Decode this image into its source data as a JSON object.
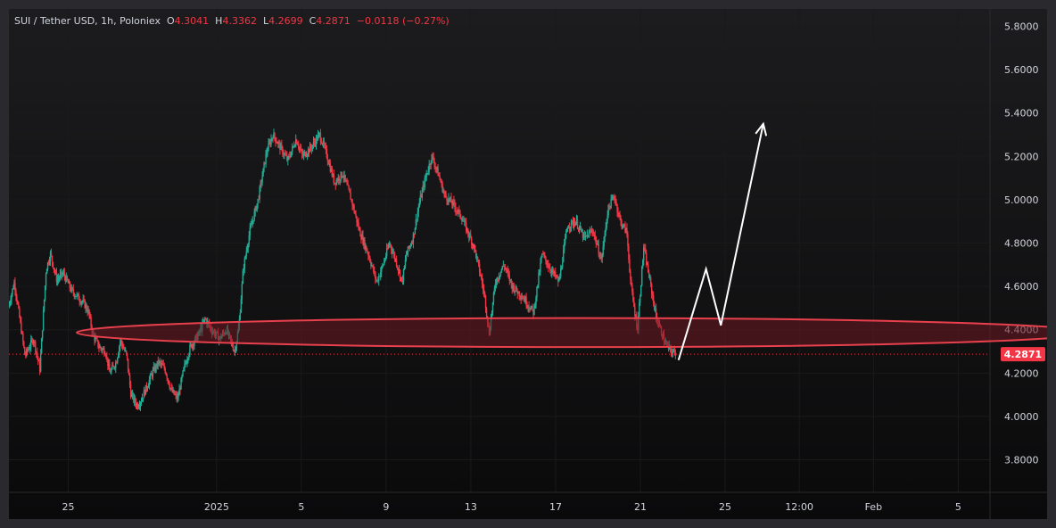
{
  "symbol": {
    "title": "SUI / Tether USD, 1h, Poloniex",
    "open_label": "O",
    "open": "4.3041",
    "high_label": "H",
    "high": "4.3362",
    "low_label": "L",
    "low": "4.2699",
    "close_label": "C",
    "close": "4.2871",
    "change": "−0.0118 (−0.27%)"
  },
  "colors": {
    "background": "#0c0c0d",
    "up_candle": "#22ab94",
    "down_candle": "#f23645",
    "zone_fill": "#6e1a22",
    "zone_stroke": "#e8404c",
    "projection": "#ffffff",
    "price_line": "#f23645",
    "text": "#d1d4dc"
  },
  "chart_data": {
    "type": "candlestick",
    "y_ticks": [
      "3.8000",
      "4.0000",
      "4.2000",
      "4.4000",
      "4.6000",
      "4.8000",
      "5.0000",
      "5.2000",
      "5.4000",
      "5.6000",
      "5.8000"
    ],
    "x_ticks": [
      {
        "label": "25",
        "t": 0.0
      },
      {
        "label": "2025",
        "t": 7.0
      },
      {
        "label": "5",
        "t": 11.0
      },
      {
        "label": "9",
        "t": 15.0
      },
      {
        "label": "13",
        "t": 19.0
      },
      {
        "label": "17",
        "t": 23.0
      },
      {
        "label": "21",
        "t": 27.0
      },
      {
        "label": "25",
        "t": 31.0
      },
      {
        "label": "12:00",
        "t": 34.5
      },
      {
        "label": "Feb",
        "t": 38.0
      },
      {
        "label": "5",
        "t": 42.0
      }
    ],
    "ylim": [
      3.65,
      5.88
    ],
    "xlim": [
      -2.8,
      43.5
    ],
    "current_price": "4.2871",
    "price_path": [
      [
        -2.8,
        4.5
      ],
      [
        -2.5,
        4.62
      ],
      [
        -2.0,
        4.28
      ],
      [
        -1.6,
        4.36
      ],
      [
        -1.3,
        4.22
      ],
      [
        -1.0,
        4.68
      ],
      [
        -0.8,
        4.75
      ],
      [
        -0.5,
        4.63
      ],
      [
        -0.2,
        4.66
      ],
      [
        0.2,
        4.58
      ],
      [
        0.5,
        4.55
      ],
      [
        0.8,
        4.52
      ],
      [
        1.0,
        4.48
      ],
      [
        1.2,
        4.38
      ],
      [
        1.5,
        4.32
      ],
      [
        1.8,
        4.3
      ],
      [
        2.0,
        4.2
      ],
      [
        2.3,
        4.25
      ],
      [
        2.5,
        4.35
      ],
      [
        2.8,
        4.28
      ],
      [
        3.0,
        4.1
      ],
      [
        3.3,
        4.05
      ],
      [
        3.5,
        4.08
      ],
      [
        3.8,
        4.15
      ],
      [
        4.0,
        4.2
      ],
      [
        4.3,
        4.25
      ],
      [
        4.6,
        4.22
      ],
      [
        4.9,
        4.12
      ],
      [
        5.2,
        4.08
      ],
      [
        5.5,
        4.22
      ],
      [
        5.8,
        4.32
      ],
      [
        6.2,
        4.38
      ],
      [
        6.5,
        4.45
      ],
      [
        6.8,
        4.4
      ],
      [
        7.2,
        4.36
      ],
      [
        7.5,
        4.4
      ],
      [
        7.9,
        4.3
      ],
      [
        8.1,
        4.42
      ],
      [
        8.3,
        4.68
      ],
      [
        8.6,
        4.85
      ],
      [
        9.0,
        5.0
      ],
      [
        9.4,
        5.22
      ],
      [
        9.7,
        5.3
      ],
      [
        10.0,
        5.25
      ],
      [
        10.4,
        5.18
      ],
      [
        10.8,
        5.28
      ],
      [
        11.1,
        5.2
      ],
      [
        11.5,
        5.24
      ],
      [
        11.9,
        5.3
      ],
      [
        12.2,
        5.22
      ],
      [
        12.6,
        5.08
      ],
      [
        13.0,
        5.12
      ],
      [
        13.4,
        5.0
      ],
      [
        13.8,
        4.85
      ],
      [
        14.2,
        4.75
      ],
      [
        14.6,
        4.62
      ],
      [
        14.9,
        4.7
      ],
      [
        15.2,
        4.8
      ],
      [
        15.5,
        4.72
      ],
      [
        15.8,
        4.62
      ],
      [
        16.0,
        4.75
      ],
      [
        16.3,
        4.82
      ],
      [
        16.6,
        4.98
      ],
      [
        16.9,
        5.1
      ],
      [
        17.2,
        5.2
      ],
      [
        17.5,
        5.12
      ],
      [
        17.8,
        5.02
      ],
      [
        18.2,
        4.98
      ],
      [
        18.6,
        4.92
      ],
      [
        18.9,
        4.85
      ],
      [
        19.2,
        4.78
      ],
      [
        19.5,
        4.65
      ],
      [
        19.7,
        4.55
      ],
      [
        19.9,
        4.38
      ],
      [
        20.2,
        4.62
      ],
      [
        20.6,
        4.7
      ],
      [
        21.0,
        4.6
      ],
      [
        21.5,
        4.55
      ],
      [
        22.0,
        4.48
      ],
      [
        22.4,
        4.75
      ],
      [
        22.8,
        4.68
      ],
      [
        23.2,
        4.62
      ],
      [
        23.6,
        4.88
      ],
      [
        24.0,
        4.9
      ],
      [
        24.4,
        4.82
      ],
      [
        24.8,
        4.86
      ],
      [
        25.2,
        4.72
      ],
      [
        25.5,
        4.95
      ],
      [
        25.8,
        5.02
      ],
      [
        26.1,
        4.9
      ],
      [
        26.4,
        4.85
      ],
      [
        26.6,
        4.6
      ],
      [
        26.9,
        4.4
      ],
      [
        27.2,
        4.78
      ],
      [
        27.5,
        4.62
      ],
      [
        27.8,
        4.45
      ],
      [
        28.0,
        4.4
      ],
      [
        28.2,
        4.34
      ],
      [
        28.5,
        4.3
      ],
      [
        28.7,
        4.29
      ]
    ],
    "support_zone": {
      "t_center": 24.3,
      "t_half_width": 23.9,
      "price_center": 4.387,
      "price_half_height": 0.067
    },
    "projection_path": [
      [
        28.8,
        4.26
      ],
      [
        30.1,
        4.68
      ],
      [
        30.8,
        4.42
      ],
      [
        32.8,
        5.35
      ]
    ],
    "projection_arrow_tip": [
      32.8,
      5.35
    ]
  }
}
